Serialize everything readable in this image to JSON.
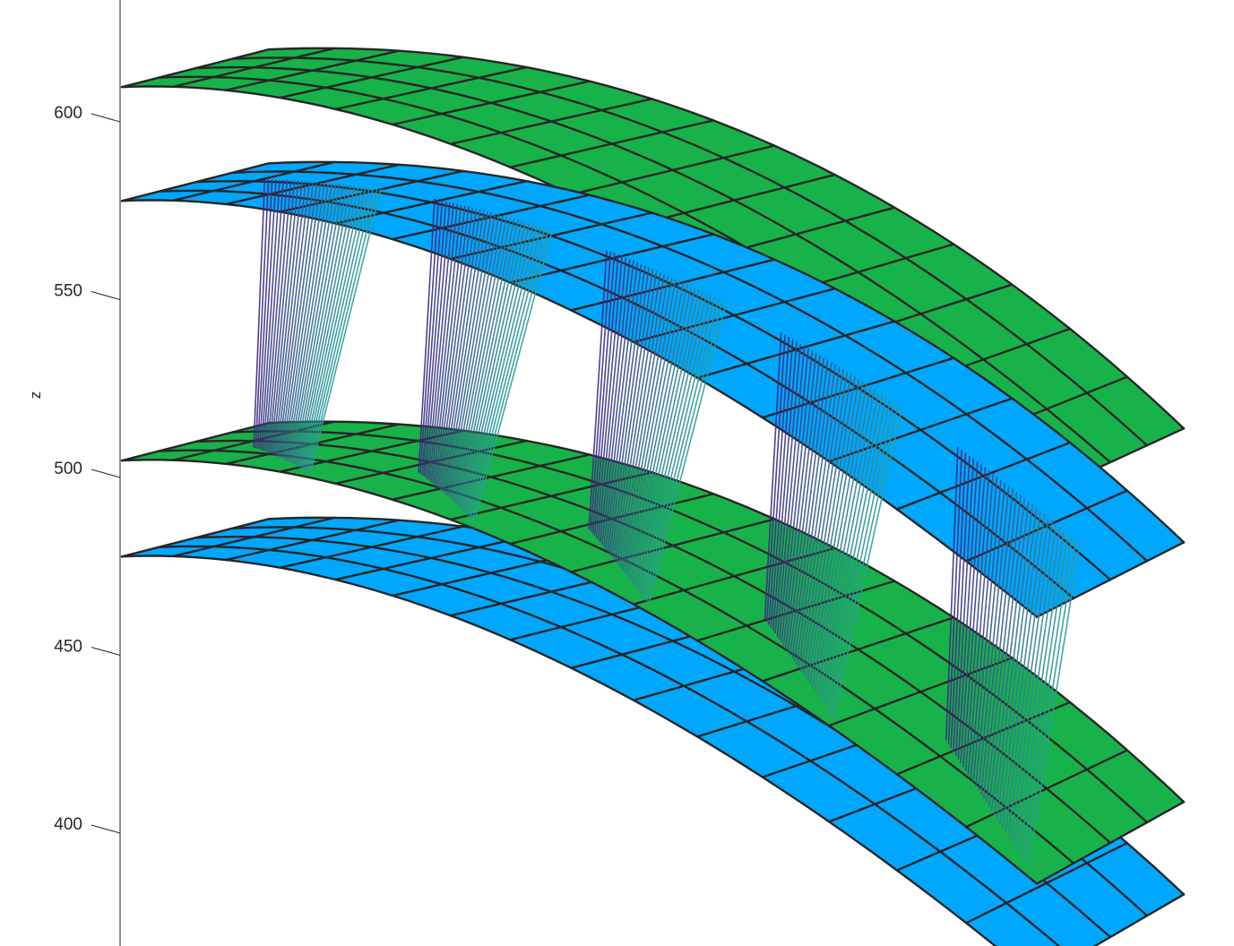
{
  "chart_data": {
    "type": "surface",
    "zlabel": "z",
    "z_ticks": [
      400,
      450,
      500,
      550,
      600
    ],
    "grid": true,
    "colors": {
      "green_surface": "#17B34A",
      "blue_surface": "#00A7FF",
      "mesh": "#262626",
      "lines_start": "#3E2A82",
      "lines_end": "#2D9E99"
    },
    "surfaces": [
      {
        "color": "green",
        "z_start": 607,
        "z_end_near": 511,
        "z_end_far": 492
      },
      {
        "color": "blue",
        "z_start": 575,
        "z_end_near": 479,
        "z_end_far": 458
      },
      {
        "color": "green",
        "z_start": 502,
        "z_end_near": 406,
        "z_end_far": 383
      },
      {
        "color": "blue",
        "z_start": 475,
        "z_end_near": 380,
        "z_end_far": 356
      }
    ],
    "connector_groups": 5,
    "lines_per_group": 32
  }
}
